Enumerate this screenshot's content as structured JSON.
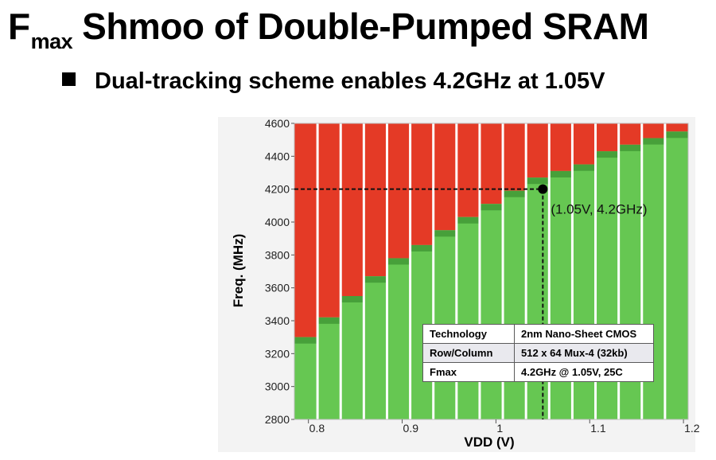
{
  "slide": {
    "title_main": "F",
    "title_sub": "max",
    "title_rest": "Shmoo of Double-Pumped SRAM",
    "bullet": "Dual-tracking scheme enables 4.2GHz at 1.05V"
  },
  "chart_data": {
    "type": "heatmap",
    "title": "",
    "xlabel": "VDD (V)",
    "ylabel": "Freq. (MHz)",
    "xlim": [
      0.785,
      1.205
    ],
    "ylim": [
      2800,
      4600
    ],
    "x_ticks": [
      0.8,
      0.9,
      1,
      1.1,
      1.2
    ],
    "x_tick_labels": [
      "0.8",
      "0.9",
      "1",
      "1.1",
      "1.2"
    ],
    "y_ticks": [
      2800,
      3000,
      3200,
      3400,
      3600,
      3800,
      4000,
      4200,
      4400,
      4600
    ],
    "y_tick_labels": [
      "2800",
      "3000",
      "3200",
      "3400",
      "3600",
      "3800",
      "4000",
      "4200",
      "4400",
      "4600"
    ],
    "vdd_columns": [
      0.8,
      0.825,
      0.85,
      0.875,
      0.9,
      0.925,
      0.95,
      0.975,
      1.0,
      1.025,
      1.05,
      1.075,
      1.1,
      1.125,
      1.15,
      1.175,
      1.2
    ],
    "pass_max_mhz": [
      3300,
      3420,
      3550,
      3670,
      3780,
      3860,
      3950,
      4030,
      4110,
      4190,
      4270,
      4310,
      4350,
      4430,
      4470,
      4510,
      4550
    ],
    "legend": {
      "pass": "",
      "fail": ""
    },
    "colors": {
      "pass": "#66c752",
      "pass_edge": "#47a03a",
      "fail": "#e43a26",
      "grid": "#ffffff"
    },
    "annotation": {
      "x": 1.05,
      "y": 4200,
      "label": "(1.05V, 4.2GHz)"
    },
    "grid": true
  },
  "spec_table": [
    {
      "key": "Technology",
      "value": "2nm Nano-Sheet CMOS"
    },
    {
      "key": "Row/Column",
      "value": "512 x 64 Mux-4 (32kb)"
    },
    {
      "key": "Fmax",
      "value": "4.2GHz @ 1.05V, 25C"
    }
  ]
}
